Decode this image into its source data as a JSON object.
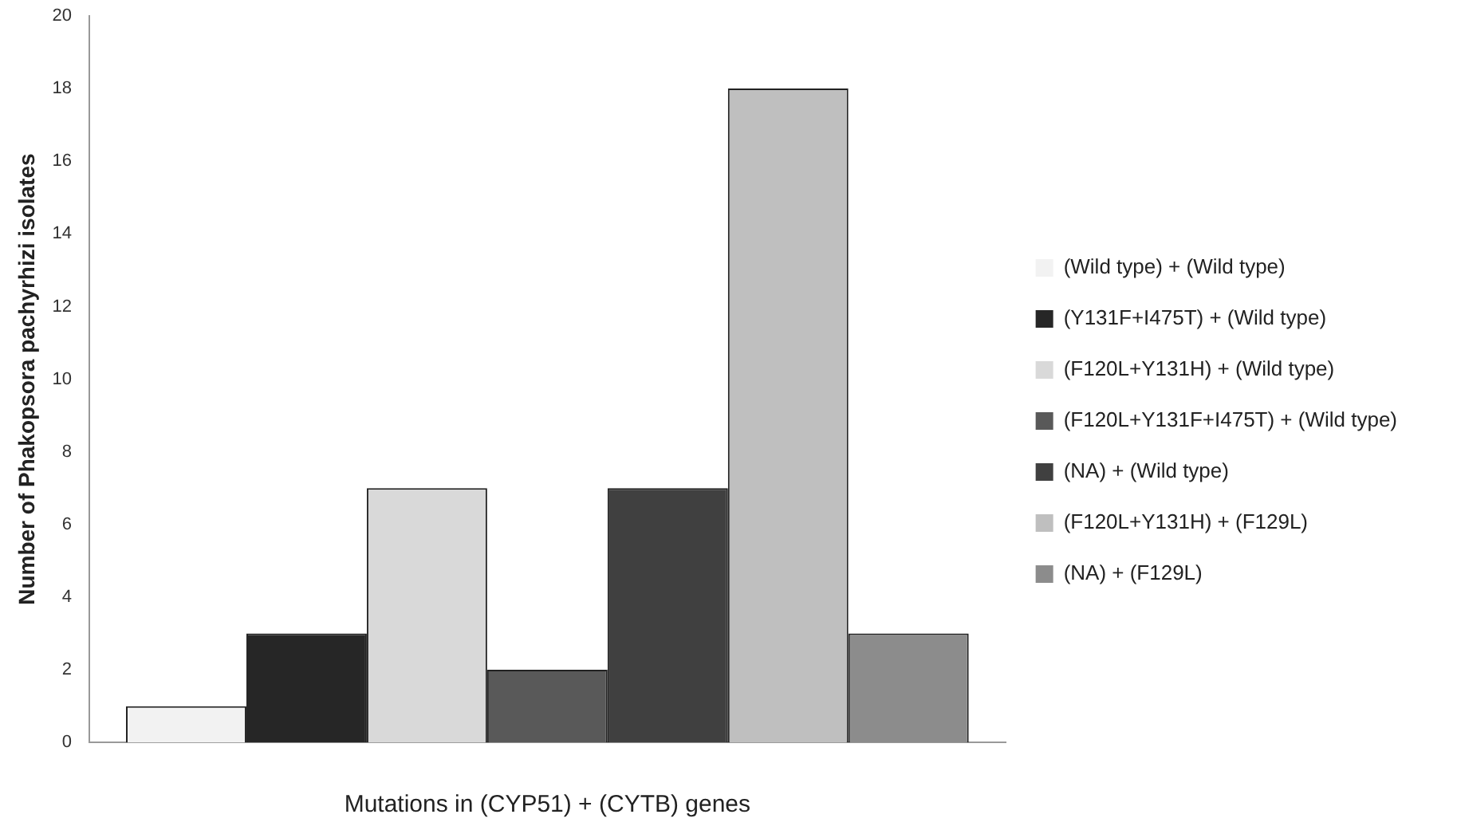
{
  "chart_data": {
    "type": "bar",
    "xlabel": "Mutations in (CYP51) + (CYTB) genes",
    "ylabel": "Number of Phakopsora pachyrhizi isolates",
    "categories": [
      null
    ],
    "series": [
      {
        "name": "(Wild type) + (Wild type)",
        "color": "#f2f2f2",
        "values": [
          1
        ]
      },
      {
        "name": "(Y131F+I475T) + (Wild type)",
        "color": "#262626",
        "values": [
          3
        ]
      },
      {
        "name": "(F120L+Y131H) + (Wild type)",
        "color": "#d9d9d9",
        "values": [
          7
        ]
      },
      {
        "name": "(F120L+Y131F+I475T) + (Wild type)",
        "color": "#595959",
        "values": [
          2
        ]
      },
      {
        "name": "(NA) + (Wild type)",
        "color": "#404040",
        "values": [
          7
        ]
      },
      {
        "name": "(F120L+Y131H) + (F129L)",
        "color": "#bfbfbf",
        "values": [
          18
        ]
      },
      {
        "name": "(NA) + (F129L)",
        "color": "#8c8c8c",
        "values": [
          3
        ]
      }
    ],
    "ylim": [
      0,
      20
    ],
    "yticks": [
      0,
      2,
      4,
      6,
      8,
      10,
      12,
      14,
      16,
      18,
      20
    ],
    "grid": false,
    "legend": "right"
  }
}
